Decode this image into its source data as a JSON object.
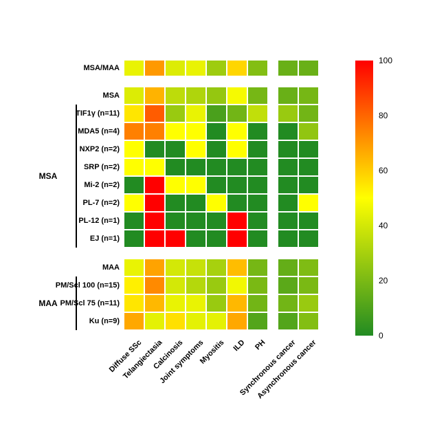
{
  "figure": {
    "background": "#ffffff",
    "title": ""
  },
  "chart_data": {
    "type": "heatmap",
    "unit": "percent",
    "columns": [
      "Diffuse SSc",
      "Telangiectasia",
      "Calcinosis",
      "Joint symptoms",
      "Myositis",
      "ILD",
      "PH",
      "Synchronous cancer",
      "Asynchronous cancer"
    ],
    "column_gap_after_index": 6,
    "row_blocks": [
      {
        "group": "",
        "rows": [
          {
            "label": "MSA/MAA",
            "values": [
              45,
              70,
              42,
              45,
              28,
              58,
              22,
              16,
              16
            ]
          }
        ]
      },
      {
        "group": "MSA",
        "rows": [
          {
            "label": "MSA",
            "values": [
              42,
              65,
              35,
              32,
              26,
              48,
              19,
              16,
              19
            ]
          },
          {
            "label": "TIF1γ (n=11)",
            "values": [
              55,
              82,
              27,
              45,
              9,
              18,
              36,
              27,
              18
            ]
          },
          {
            "label": "MDA5 (n=4)",
            "values": [
              75,
              75,
              50,
              50,
              0,
              50,
              0,
              0,
              25
            ]
          },
          {
            "label": "NXP2 (n=2)",
            "values": [
              50,
              0,
              0,
              50,
              0,
              50,
              0,
              0,
              0
            ]
          },
          {
            "label": "SRP (n=2)",
            "values": [
              50,
              50,
              0,
              0,
              0,
              0,
              0,
              0,
              0
            ]
          },
          {
            "label": "Mi-2 (n=2)",
            "values": [
              0,
              100,
              50,
              50,
              0,
              0,
              0,
              0,
              0
            ]
          },
          {
            "label": "PL-7 (n=2)",
            "values": [
              50,
              100,
              0,
              0,
              50,
              0,
              0,
              0,
              50
            ]
          },
          {
            "label": "PL-12 (n=1)",
            "values": [
              0,
              100,
              0,
              0,
              0,
              100,
              0,
              0,
              0
            ]
          },
          {
            "label": "EJ (n=1)",
            "values": [
              0,
              100,
              100,
              0,
              0,
              100,
              0,
              0,
              0
            ]
          }
        ]
      },
      {
        "group": "MAA",
        "rows": [
          {
            "label": "MAA",
            "values": [
              45,
              68,
              40,
              37,
              30,
              63,
              19,
              15,
              21
            ]
          },
          {
            "label": "PM/Scl 100 (n=15)",
            "values": [
              53,
              73,
              40,
              33,
              27,
              47,
              20,
              13,
              20
            ]
          },
          {
            "label": "PM/Scl 75 (n=11)",
            "values": [
              55,
              64,
              45,
              45,
              27,
              64,
              18,
              18,
              27
            ]
          },
          {
            "label": "Ku (n=9)",
            "values": [
              67,
              44,
              56,
              44,
              44,
              67,
              11,
              11,
              22
            ]
          }
        ]
      }
    ],
    "colorbar": {
      "min": 0,
      "max": 100,
      "ticks": [
        100,
        80,
        60,
        40,
        20,
        0
      ],
      "gradient": {
        "low": "#228B22",
        "mid": "#FFFF00",
        "high": "#FF0000"
      }
    }
  }
}
